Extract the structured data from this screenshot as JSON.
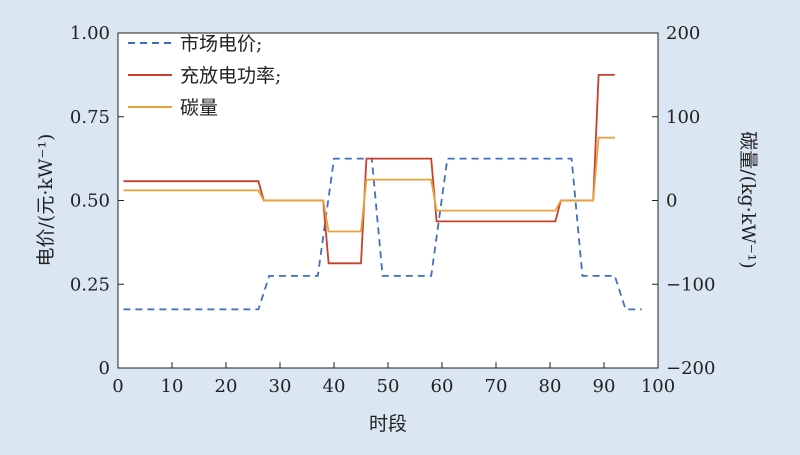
{
  "chart_data": {
    "type": "line",
    "xlabel": "时段",
    "ylabel_left": "电价/(元·kW⁻¹)",
    "ylabel_right": "碳量/(kg·kW⁻¹)",
    "xlim": [
      0,
      100
    ],
    "ylim_left": [
      0,
      1.0
    ],
    "ylim_right": [
      -200,
      200
    ],
    "x_ticks": [
      "0",
      "10",
      "20",
      "30",
      "40",
      "50",
      "60",
      "70",
      "80",
      "90",
      "100"
    ],
    "y_left_ticks": [
      "0",
      "0.25",
      "0.50",
      "0.75",
      "1.00"
    ],
    "y_right_ticks": [
      "-200",
      "-100",
      "0",
      "100",
      "200"
    ],
    "grid": false,
    "legend_position": "top-left",
    "series": [
      {
        "name": "市场电价;",
        "axis": "left",
        "color": "#3f6fc0",
        "dash": "dashed",
        "points": [
          [
            1,
            0.175
          ],
          [
            26,
            0.175
          ],
          [
            28,
            0.275
          ],
          [
            37,
            0.275
          ],
          [
            40,
            0.625
          ],
          [
            47,
            0.625
          ],
          [
            49,
            0.275
          ],
          [
            58,
            0.275
          ],
          [
            61,
            0.625
          ],
          [
            84,
            0.625
          ],
          [
            86,
            0.275
          ],
          [
            92,
            0.275
          ],
          [
            94,
            0.175
          ],
          [
            97,
            0.175
          ]
        ]
      },
      {
        "name": "充放电功率;",
        "axis": "right",
        "color": "#c8402a",
        "dash": "solid",
        "points": [
          [
            1,
            23
          ],
          [
            26,
            23
          ],
          [
            27,
            0
          ],
          [
            38,
            0
          ],
          [
            39,
            -75
          ],
          [
            45,
            -75
          ],
          [
            46,
            50
          ],
          [
            58,
            50
          ],
          [
            59,
            -25
          ],
          [
            81,
            -25
          ],
          [
            82,
            0
          ],
          [
            88,
            0
          ],
          [
            89,
            150
          ],
          [
            92,
            150
          ]
        ]
      },
      {
        "name": "碳量",
        "axis": "right",
        "color": "#e8a13c",
        "dash": "solid",
        "points": [
          [
            1,
            12
          ],
          [
            26,
            12
          ],
          [
            27,
            0
          ],
          [
            38,
            0
          ],
          [
            39,
            -37
          ],
          [
            45,
            -37
          ],
          [
            46,
            25
          ],
          [
            58,
            25
          ],
          [
            59,
            -12
          ],
          [
            81,
            -12
          ],
          [
            82,
            0
          ],
          [
            88,
            0
          ],
          [
            89,
            75
          ],
          [
            92,
            75
          ]
        ]
      }
    ]
  }
}
